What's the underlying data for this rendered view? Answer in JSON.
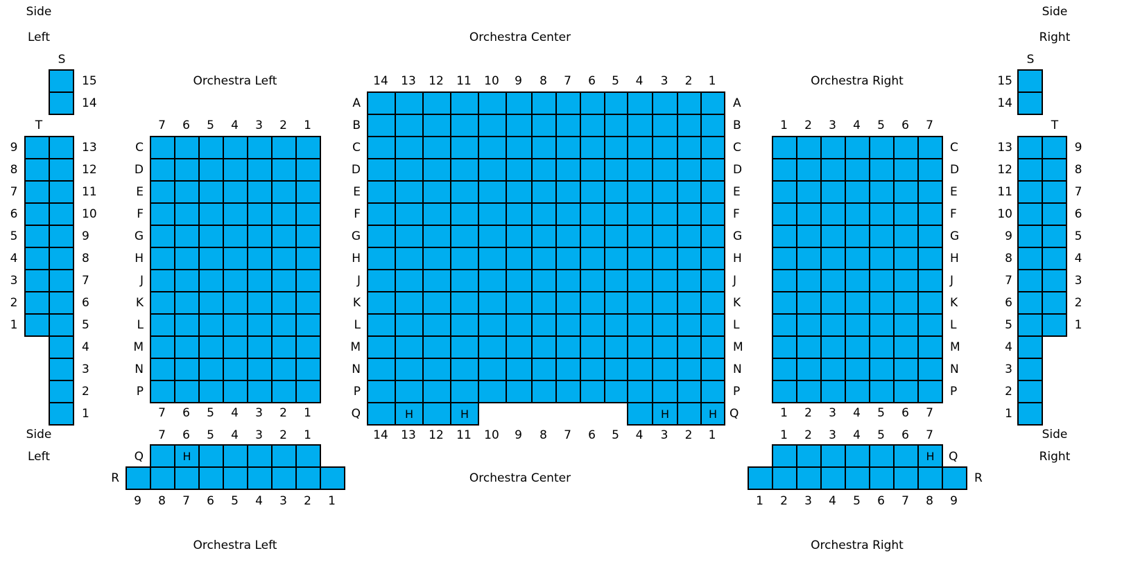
{
  "sections": {
    "side_left_top": [
      "Side",
      "Left"
    ],
    "side_right_top": [
      "Side",
      "Right"
    ],
    "orchestra_center_top": "Orchestra Center",
    "orchestra_left_top": "Orchestra Left",
    "orchestra_right_top": "Orchestra Right",
    "side_left_bottom": [
      "Side",
      "Left"
    ],
    "side_right_bottom": [
      "Side",
      "Right"
    ],
    "orchestra_center_bottom": "Orchestra Center",
    "orchestra_left_bottom": "Orchestra Left",
    "orchestra_right_bottom": "Orchestra Right"
  },
  "center": {
    "rows": [
      "A",
      "B",
      "C",
      "D",
      "E",
      "F",
      "G",
      "H",
      "J",
      "K",
      "L",
      "M",
      "N",
      "P"
    ],
    "seat_numbers": [
      "14",
      "13",
      "12",
      "11",
      "10",
      "9",
      "8",
      "7",
      "6",
      "5",
      "4",
      "3",
      "2",
      "1"
    ],
    "row_q": {
      "label": "Q",
      "seats": [
        {
          "num": "14",
          "mark": ""
        },
        {
          "num": "13",
          "mark": "H"
        },
        {
          "num": "12",
          "mark": ""
        },
        {
          "num": "11",
          "mark": "H"
        },
        {
          "num": "4",
          "mark": ""
        },
        {
          "num": "3",
          "mark": "H"
        },
        {
          "num": "2",
          "mark": ""
        },
        {
          "num": "1",
          "mark": "H"
        }
      ]
    }
  },
  "orchestra_left": {
    "rows": [
      "C",
      "D",
      "E",
      "F",
      "G",
      "H",
      "J",
      "K",
      "L",
      "M",
      "N",
      "P"
    ],
    "seat_numbers": [
      "7",
      "6",
      "5",
      "4",
      "3",
      "2",
      "1"
    ]
  },
  "orchestra_right": {
    "rows": [
      "C",
      "D",
      "E",
      "F",
      "G",
      "H",
      "J",
      "K",
      "L",
      "M",
      "N",
      "P"
    ],
    "seat_numbers": [
      "1",
      "2",
      "3",
      "4",
      "5",
      "6",
      "7"
    ]
  },
  "bottom_left": {
    "row_q": {
      "label": "Q",
      "seat_numbers": [
        "7",
        "6",
        "5",
        "4",
        "3",
        "2",
        "1"
      ],
      "marks": [
        "",
        "H",
        "",
        "",
        "",
        "",
        ""
      ]
    },
    "row_r": {
      "label": "R",
      "seat_numbers": [
        "9",
        "8",
        "7",
        "6",
        "5",
        "4",
        "3",
        "2",
        "1"
      ]
    }
  },
  "bottom_right": {
    "row_q": {
      "label": "Q",
      "seat_numbers": [
        "1",
        "2",
        "3",
        "4",
        "5",
        "6",
        "7"
      ],
      "marks": [
        "",
        "",
        "",
        "",
        "",
        "",
        "H"
      ]
    },
    "row_r": {
      "label": "R",
      "seat_numbers": [
        "1",
        "2",
        "3",
        "4",
        "5",
        "6",
        "7",
        "8",
        "9"
      ]
    }
  },
  "side_left": {
    "s_label": "S",
    "s_seats": [
      "15",
      "14"
    ],
    "t_label": "T",
    "t_seats": [
      "13",
      "12",
      "11",
      "10",
      "9",
      "8",
      "7",
      "6",
      "5",
      "4",
      "3",
      "2",
      "1"
    ],
    "outer_seats": [
      "9",
      "8",
      "7",
      "6",
      "5",
      "4",
      "3",
      "2",
      "1"
    ]
  },
  "side_right": {
    "s_label": "S",
    "s_seats": [
      "15",
      "14"
    ],
    "t_label": "T",
    "t_seats": [
      "13",
      "12",
      "11",
      "10",
      "9",
      "8",
      "7",
      "6",
      "5",
      "4",
      "3",
      "2",
      "1"
    ],
    "outer_seats": [
      "9",
      "8",
      "7",
      "6",
      "5",
      "4",
      "3",
      "2",
      "1"
    ]
  },
  "colors": {
    "seat": "#00aeef",
    "border": "#000000",
    "background": "#ffffff"
  }
}
